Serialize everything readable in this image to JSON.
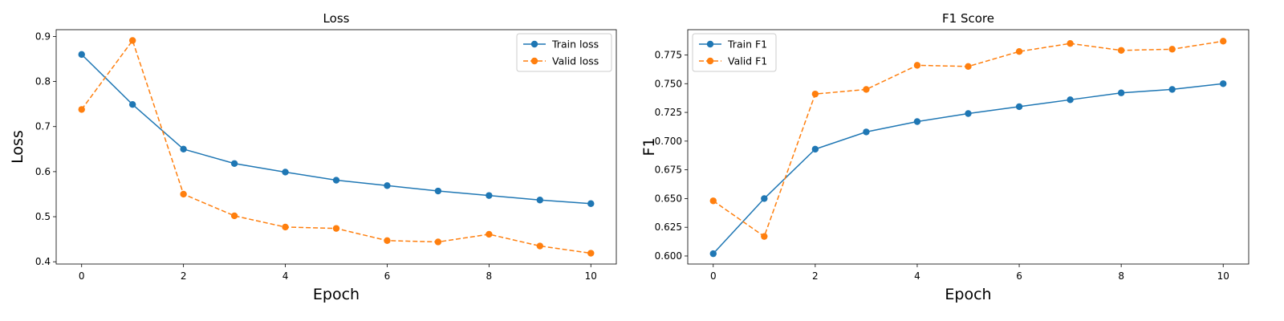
{
  "chart_data": [
    {
      "type": "line",
      "title": "Loss",
      "xlabel": "Epoch",
      "ylabel": "Loss",
      "x": [
        0,
        1,
        2,
        3,
        4,
        5,
        6,
        7,
        8,
        9,
        10
      ],
      "xlim": [
        -0.5,
        10.5
      ],
      "ylim": [
        0.395,
        0.915
      ],
      "xticks": [
        0,
        2,
        4,
        6,
        8,
        10
      ],
      "xtick_labels": [
        "0",
        "2",
        "4",
        "6",
        "8",
        "10"
      ],
      "yticks": [
        0.4,
        0.5,
        0.6,
        0.7,
        0.8,
        0.9
      ],
      "ytick_labels": [
        "0.4",
        "0.5",
        "0.6",
        "0.7",
        "0.8",
        "0.9"
      ],
      "legend_position": "top-right",
      "grid": false,
      "series": [
        {
          "name": "Train loss",
          "color": "#1f77b4",
          "style": "solid",
          "values": [
            0.86,
            0.749,
            0.65,
            0.618,
            0.599,
            0.581,
            0.569,
            0.557,
            0.547,
            0.537,
            0.529
          ]
        },
        {
          "name": "Valid loss",
          "color": "#ff7f0e",
          "style": "dashed",
          "values": [
            0.738,
            0.891,
            0.55,
            0.502,
            0.477,
            0.474,
            0.447,
            0.444,
            0.461,
            0.435,
            0.419
          ]
        }
      ]
    },
    {
      "type": "line",
      "title": "F1 Score",
      "xlabel": "Epoch",
      "ylabel": "F1",
      "x": [
        0,
        1,
        2,
        3,
        4,
        5,
        6,
        7,
        8,
        9,
        10
      ],
      "xlim": [
        -0.5,
        10.5
      ],
      "ylim": [
        0.593,
        0.797
      ],
      "xticks": [
        0,
        2,
        4,
        6,
        8,
        10
      ],
      "xtick_labels": [
        "0",
        "2",
        "4",
        "6",
        "8",
        "10"
      ],
      "yticks": [
        0.6,
        0.625,
        0.65,
        0.675,
        0.7,
        0.725,
        0.75,
        0.775
      ],
      "ytick_labels": [
        "0.600",
        "0.625",
        "0.650",
        "0.675",
        "0.700",
        "0.725",
        "0.750",
        "0.775"
      ],
      "legend_position": "top-left",
      "grid": false,
      "series": [
        {
          "name": "Train F1",
          "color": "#1f77b4",
          "style": "solid",
          "values": [
            0.602,
            0.65,
            0.693,
            0.708,
            0.717,
            0.724,
            0.73,
            0.736,
            0.742,
            0.745,
            0.75
          ]
        },
        {
          "name": "Valid F1",
          "color": "#ff7f0e",
          "style": "dashed",
          "values": [
            0.648,
            0.617,
            0.741,
            0.745,
            0.766,
            0.765,
            0.778,
            0.785,
            0.779,
            0.78,
            0.787
          ]
        }
      ]
    }
  ]
}
